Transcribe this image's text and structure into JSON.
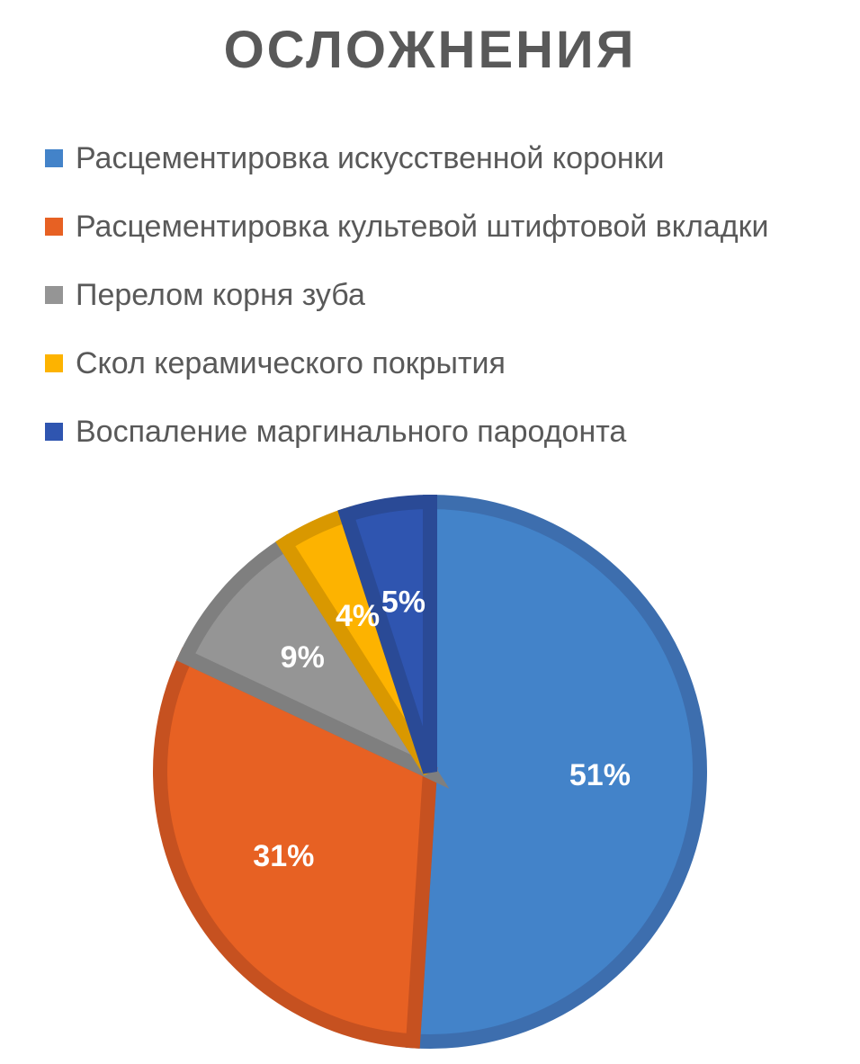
{
  "chart_data": {
    "type": "pie",
    "title": "ОСЛОЖНЕНИЯ",
    "legend_position": "top",
    "categories": [
      "Расцементировка искусственной коронки",
      "Расцементировка культевой штифтовой вкладки",
      "Перелом корня зуба",
      "Скол керамического покрытия",
      "Воспаление маргинального пародонта"
    ],
    "values": [
      51,
      31,
      9,
      4,
      5
    ],
    "data_labels": [
      "51%",
      "31%",
      "9%",
      "4%",
      "5%"
    ],
    "colors": [
      "#4383C9",
      "#E76123",
      "#959595",
      "#FDB300",
      "#2F55B0"
    ],
    "border_colors": [
      "#3D6EAE",
      "#C65120",
      "#7F7F7F",
      "#D99800",
      "#2A4A96"
    ]
  }
}
